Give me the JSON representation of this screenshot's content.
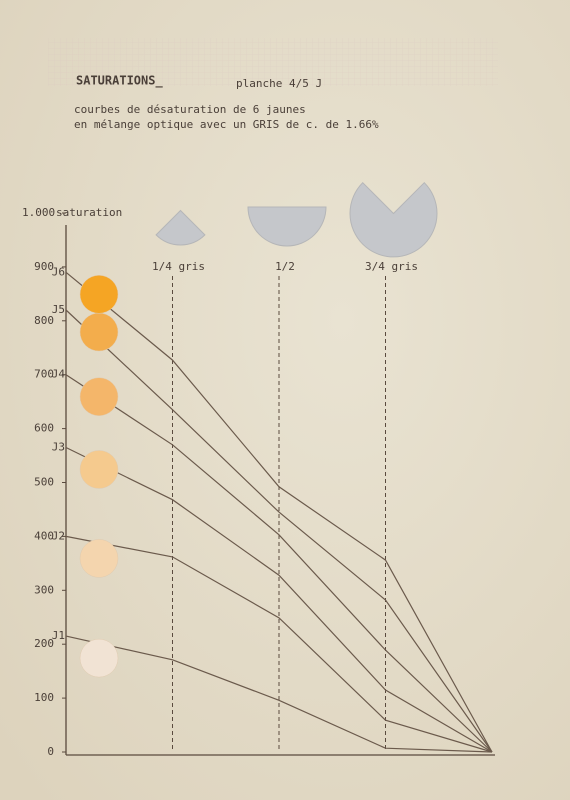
{
  "chart_data": {
    "type": "line",
    "title": "SATURATIONS_",
    "plate": "planche 4/5 J",
    "subtitle": [
      "courbes de désaturation de 6 jaunes",
      "en mélange optique avec un GRIS de c. de 1.66%"
    ],
    "y_label": "saturation",
    "x": [
      0,
      0.25,
      0.5,
      0.75,
      1
    ],
    "xlim": [
      0,
      1
    ],
    "xticks": [
      {
        "value": 0.25,
        "label": "1/4 gris"
      },
      {
        "value": 0.5,
        "label": "1/2"
      },
      {
        "value": 0.75,
        "label": "3/4 gris"
      }
    ],
    "ylim": [
      0,
      1000
    ],
    "yticks": [
      0,
      100,
      200,
      300,
      400,
      500,
      600,
      700,
      800,
      900,
      {
        "value": 1000,
        "label": "1.000"
      }
    ],
    "line_color": "#6b5a4c",
    "series": [
      {
        "name": "J1",
        "color": "#f1e3d4",
        "values": [
          215,
          171,
          96,
          7,
          0
        ]
      },
      {
        "name": "J2",
        "color": "#f4d5ae",
        "values": [
          400,
          362,
          249,
          59,
          0
        ]
      },
      {
        "name": "J3",
        "color": "#f5ca8e",
        "values": [
          565,
          468,
          328,
          115,
          0
        ]
      },
      {
        "name": "J4",
        "color": "#f4b66a",
        "values": [
          700,
          570,
          403,
          189,
          0
        ]
      },
      {
        "name": "J5",
        "color": "#f3ad4c",
        "values": [
          820,
          635,
          445,
          282,
          0
        ]
      },
      {
        "name": "J6",
        "color": "#f5a524",
        "values": [
          890,
          727,
          492,
          356,
          0
        ]
      }
    ]
  }
}
